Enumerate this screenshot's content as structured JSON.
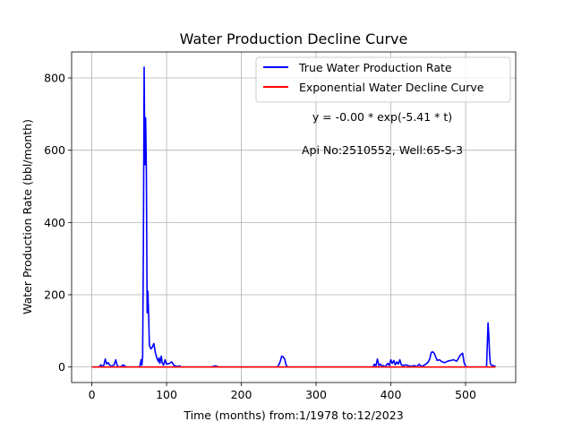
{
  "chart_data": {
    "type": "line",
    "title": "Water Production Decline Curve",
    "xlabel": "Time (months) from:1/1978 to:12/2023",
    "ylabel": "Water Production Rate (bbl/month)",
    "xlim": [
      -27,
      567
    ],
    "ylim": [
      -43,
      872
    ],
    "xticks": [
      0,
      100,
      200,
      300,
      400,
      500
    ],
    "yticks": [
      0,
      200,
      400,
      600,
      800
    ],
    "grid": true,
    "legend_position": "top-right",
    "annotations": [
      "y = -0.00 * exp(-5.41 * t)",
      "Api No:2510552, Well:65-S-3"
    ],
    "series": [
      {
        "name": "True Water Production Rate",
        "color": "#0000ff",
        "points": [
          [
            0,
            0
          ],
          [
            10,
            0
          ],
          [
            12,
            6
          ],
          [
            14,
            2
          ],
          [
            16,
            4
          ],
          [
            18,
            22
          ],
          [
            20,
            8
          ],
          [
            22,
            12
          ],
          [
            24,
            5
          ],
          [
            26,
            2
          ],
          [
            28,
            4
          ],
          [
            30,
            6
          ],
          [
            32,
            20
          ],
          [
            34,
            4
          ],
          [
            36,
            0
          ],
          [
            40,
            2
          ],
          [
            42,
            6
          ],
          [
            46,
            0
          ],
          [
            64,
            0
          ],
          [
            66,
            20
          ],
          [
            67,
            5
          ],
          [
            68,
            30
          ],
          [
            69,
            330
          ],
          [
            70,
            830
          ],
          [
            71,
            560
          ],
          [
            72,
            690
          ],
          [
            73,
            540
          ],
          [
            74,
            150
          ],
          [
            75,
            210
          ],
          [
            76,
            145
          ],
          [
            77,
            60
          ],
          [
            79,
            50
          ],
          [
            81,
            55
          ],
          [
            83,
            65
          ],
          [
            85,
            40
          ],
          [
            87,
            25
          ],
          [
            89,
            15
          ],
          [
            90,
            25
          ],
          [
            91,
            10
          ],
          [
            93,
            30
          ],
          [
            94,
            12
          ],
          [
            96,
            5
          ],
          [
            98,
            20
          ],
          [
            100,
            8
          ],
          [
            104,
            10
          ],
          [
            107,
            14
          ],
          [
            110,
            4
          ],
          [
            115,
            1
          ],
          [
            117,
            3
          ],
          [
            120,
            0
          ],
          [
            160,
            0
          ],
          [
            165,
            3
          ],
          [
            170,
            0
          ],
          [
            248,
            0
          ],
          [
            250,
            5
          ],
          [
            252,
            15
          ],
          [
            254,
            30
          ],
          [
            256,
            28
          ],
          [
            258,
            22
          ],
          [
            260,
            5
          ],
          [
            262,
            0
          ],
          [
            376,
            0
          ],
          [
            378,
            8
          ],
          [
            380,
            2
          ],
          [
            382,
            22
          ],
          [
            384,
            4
          ],
          [
            386,
            8
          ],
          [
            388,
            2
          ],
          [
            390,
            4
          ],
          [
            392,
            0
          ],
          [
            396,
            10
          ],
          [
            398,
            4
          ],
          [
            400,
            20
          ],
          [
            402,
            10
          ],
          [
            404,
            18
          ],
          [
            406,
            6
          ],
          [
            408,
            14
          ],
          [
            410,
            8
          ],
          [
            412,
            20
          ],
          [
            414,
            6
          ],
          [
            416,
            4
          ],
          [
            420,
            6
          ],
          [
            424,
            3
          ],
          [
            428,
            2
          ],
          [
            432,
            4
          ],
          [
            434,
            0
          ],
          [
            438,
            8
          ],
          [
            440,
            2
          ],
          [
            444,
            4
          ],
          [
            448,
            10
          ],
          [
            450,
            14
          ],
          [
            452,
            22
          ],
          [
            454,
            40
          ],
          [
            456,
            42
          ],
          [
            458,
            38
          ],
          [
            460,
            28
          ],
          [
            462,
            18
          ],
          [
            465,
            20
          ],
          [
            468,
            15
          ],
          [
            472,
            12
          ],
          [
            476,
            16
          ],
          [
            480,
            18
          ],
          [
            484,
            20
          ],
          [
            488,
            16
          ],
          [
            490,
            22
          ],
          [
            492,
            30
          ],
          [
            494,
            35
          ],
          [
            496,
            38
          ],
          [
            498,
            12
          ],
          [
            500,
            2
          ],
          [
            502,
            0
          ],
          [
            528,
            0
          ],
          [
            529,
            60
          ],
          [
            530,
            122
          ],
          [
            531,
            90
          ],
          [
            532,
            40
          ],
          [
            533,
            10
          ],
          [
            534,
            6
          ],
          [
            536,
            4
          ],
          [
            538,
            3
          ],
          [
            540,
            2
          ]
        ]
      },
      {
        "name": "Exponential Water Decline Curve",
        "color": "#ff0000",
        "points": [
          [
            0,
            0
          ],
          [
            540,
            0
          ]
        ]
      }
    ]
  }
}
